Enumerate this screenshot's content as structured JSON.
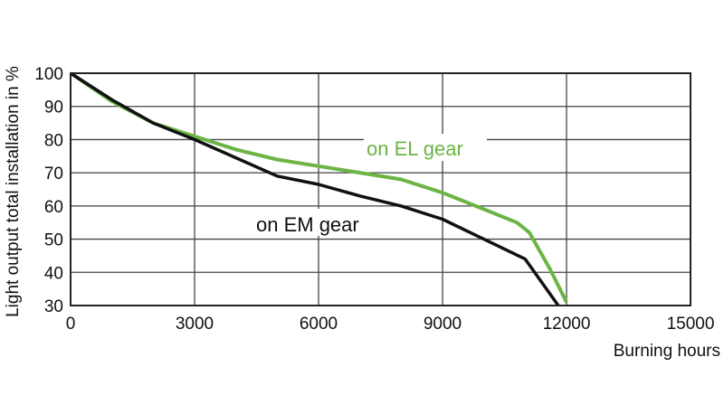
{
  "chart_data": {
    "type": "line",
    "title": "",
    "xlabel": "Burning hours",
    "ylabel": "Light output total installation in %",
    "xlim": [
      0,
      15000
    ],
    "ylim": [
      30,
      100
    ],
    "xticks": [
      0,
      3000,
      6000,
      9000,
      12000,
      15000
    ],
    "yticks": [
      30,
      40,
      50,
      60,
      70,
      80,
      90,
      100
    ],
    "grid": true,
    "series": [
      {
        "name": "on EL gear",
        "color": "#6cb545",
        "x": [
          0,
          1000,
          2000,
          3000,
          4000,
          5000,
          6000,
          7000,
          8000,
          9000,
          10000,
          10800,
          11100,
          11600,
          12000
        ],
        "y": [
          100,
          91.5,
          85,
          81,
          77,
          74,
          72,
          70,
          68,
          64,
          59,
          55,
          52,
          41,
          31
        ]
      },
      {
        "name": "on EM gear",
        "color": "#111111",
        "x": [
          0,
          1000,
          2000,
          3000,
          4000,
          5000,
          6000,
          7000,
          8000,
          9000,
          10000,
          11000,
          11800
        ],
        "y": [
          100,
          92,
          85,
          80,
          74.5,
          69,
          66.5,
          63,
          60,
          56,
          50,
          44,
          30
        ]
      }
    ]
  }
}
